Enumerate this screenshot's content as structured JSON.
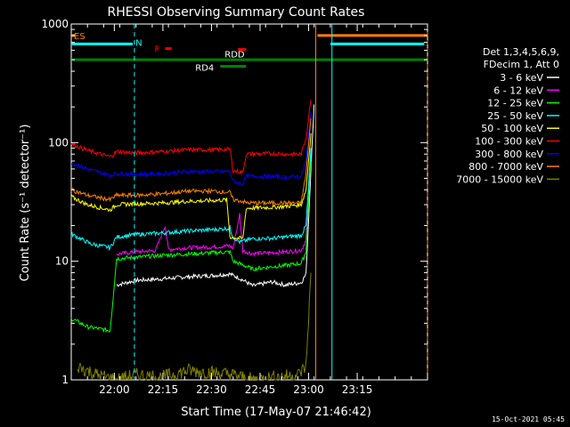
{
  "chart_data": {
    "type": "line",
    "title": "RHESSI Observing Summary Count Rates",
    "xlabel": "Start Time (17-May-07 21:46:42)",
    "ylabel": "Count Rate (s⁻¹ detector⁻¹)",
    "yscale": "log",
    "ylim": [
      1,
      1000
    ],
    "xlim_minutes": [
      0,
      110
    ],
    "y_ticks": [
      {
        "value": 1,
        "label": "1"
      },
      {
        "value": 10,
        "label": "10"
      },
      {
        "value": 100,
        "label": "100"
      },
      {
        "value": 1000,
        "label": "1000"
      }
    ],
    "x_ticks": [
      {
        "minute": 13.3,
        "label": "22:00"
      },
      {
        "minute": 28.3,
        "label": "22:15"
      },
      {
        "minute": 43.3,
        "label": "22:30"
      },
      {
        "minute": 58.3,
        "label": "22:45"
      },
      {
        "minute": 73.3,
        "label": "23:00"
      },
      {
        "minute": 88.3,
        "label": "23:15"
      }
    ],
    "legend_header": [
      "Det 1,3,4,5,6,9,",
      "FDecim 1, Att 0"
    ],
    "series": [
      {
        "name": "3 - 6 keV",
        "color": "#ffffff",
        "points": [
          [
            14,
            6.3
          ],
          [
            20,
            6.9
          ],
          [
            28,
            7.1
          ],
          [
            36,
            7.4
          ],
          [
            44,
            7.6
          ],
          [
            49,
            7.8
          ],
          [
            52,
            7.2
          ],
          [
            56,
            6.2
          ],
          [
            62,
            6.7
          ],
          [
            66,
            6.3
          ],
          [
            71,
            6.6
          ],
          [
            72.5,
            7.8
          ],
          [
            74,
            60
          ],
          [
            75,
            210
          ]
        ]
      },
      {
        "name": "6 - 12 keV",
        "color": "#ff00ff",
        "points": [
          [
            14,
            11.5
          ],
          [
            20,
            12
          ],
          [
            26,
            12.3
          ],
          [
            29,
            20
          ],
          [
            30,
            12.6
          ],
          [
            36,
            13
          ],
          [
            44,
            13.2
          ],
          [
            49,
            13.5
          ],
          [
            50,
            12.8
          ],
          [
            52,
            25
          ],
          [
            53,
            12.2
          ],
          [
            56,
            11.6
          ],
          [
            62,
            11.8
          ],
          [
            66,
            12
          ],
          [
            71,
            12.4
          ],
          [
            72.5,
            15
          ],
          [
            74,
            70
          ]
        ]
      },
      {
        "name": "12 - 25 keV",
        "color": "#00ff00",
        "points": [
          [
            0,
            3.3
          ],
          [
            5,
            2.8
          ],
          [
            12,
            2.6
          ],
          [
            14,
            10.5
          ],
          [
            20,
            10.8
          ],
          [
            28,
            11.2
          ],
          [
            36,
            11.5
          ],
          [
            44,
            11.8
          ],
          [
            49,
            12
          ],
          [
            50,
            10
          ],
          [
            53,
            9.3
          ],
          [
            56,
            8.6
          ],
          [
            62,
            9
          ],
          [
            66,
            9.2
          ],
          [
            71,
            9.6
          ],
          [
            72.5,
            12
          ],
          [
            74,
            80
          ]
        ]
      },
      {
        "name": "25 - 50 keV",
        "color": "#00ffff",
        "points": [
          [
            0,
            17
          ],
          [
            6,
            14
          ],
          [
            12,
            13
          ],
          [
            14,
            16
          ],
          [
            20,
            16.8
          ],
          [
            28,
            17.3
          ],
          [
            36,
            18
          ],
          [
            44,
            18.5
          ],
          [
            49,
            19
          ],
          [
            50,
            16
          ],
          [
            52,
            14.5
          ],
          [
            56,
            15.5
          ],
          [
            62,
            15.6
          ],
          [
            66,
            16
          ],
          [
            71,
            16.5
          ],
          [
            72.5,
            20
          ],
          [
            74,
            90
          ]
        ]
      },
      {
        "name": "50 - 100 keV",
        "color": "#ffff00",
        "points": [
          [
            0,
            35
          ],
          [
            5,
            30
          ],
          [
            12,
            27
          ],
          [
            14,
            30
          ],
          [
            20,
            30.5
          ],
          [
            28,
            31
          ],
          [
            36,
            32
          ],
          [
            44,
            32.5
          ],
          [
            48,
            33
          ],
          [
            49,
            16
          ],
          [
            53,
            15.5
          ],
          [
            54,
            28
          ],
          [
            62,
            28.5
          ],
          [
            66,
            29
          ],
          [
            71,
            30
          ],
          [
            72.5,
            40
          ],
          [
            74,
            120
          ]
        ]
      },
      {
        "name": "100 - 300 keV",
        "color": "#ff0000",
        "points": [
          [
            0,
            98
          ],
          [
            5,
            86
          ],
          [
            12,
            76
          ],
          [
            14,
            84
          ],
          [
            20,
            82
          ],
          [
            28,
            84
          ],
          [
            36,
            87
          ],
          [
            44,
            87
          ],
          [
            49,
            88
          ],
          [
            50,
            58
          ],
          [
            53,
            56
          ],
          [
            54,
            80
          ],
          [
            62,
            81
          ],
          [
            66,
            80
          ],
          [
            71,
            80
          ],
          [
            72.5,
            110
          ],
          [
            74,
            230
          ]
        ]
      },
      {
        "name": "300 - 800 keV",
        "color": "#0000ff",
        "points": [
          [
            0,
            68
          ],
          [
            5,
            60
          ],
          [
            12,
            53
          ],
          [
            14,
            55
          ],
          [
            20,
            54
          ],
          [
            28,
            55
          ],
          [
            36,
            57
          ],
          [
            44,
            57
          ],
          [
            49,
            57
          ],
          [
            50,
            47
          ],
          [
            53,
            45
          ],
          [
            54,
            52
          ],
          [
            62,
            52
          ],
          [
            66,
            51
          ],
          [
            71,
            52
          ],
          [
            72.5,
            70
          ],
          [
            74,
            180
          ]
        ]
      },
      {
        "name": "800 - 7000 keV",
        "color": "#ff8000",
        "points": [
          [
            0,
            40
          ],
          [
            5,
            36
          ],
          [
            12,
            33
          ],
          [
            14,
            36
          ],
          [
            20,
            36
          ],
          [
            28,
            37
          ],
          [
            36,
            39
          ],
          [
            44,
            39
          ],
          [
            49,
            38
          ],
          [
            50,
            33
          ],
          [
            53,
            32
          ],
          [
            54,
            31
          ],
          [
            62,
            31
          ],
          [
            66,
            31
          ],
          [
            71,
            31
          ],
          [
            72.5,
            55
          ],
          [
            74,
            160
          ]
        ]
      },
      {
        "name": "7000 - 15000 keV",
        "color": "#808000",
        "points": [
          [
            2,
            1.3
          ],
          [
            8,
            1.1
          ],
          [
            14,
            1
          ],
          [
            20,
            1.1
          ],
          [
            28,
            1.05
          ],
          [
            36,
            1.2
          ],
          [
            44,
            1.15
          ],
          [
            50,
            1.1
          ],
          [
            56,
            1
          ],
          [
            62,
            1.05
          ],
          [
            70,
            1.1
          ],
          [
            72.5,
            1.3
          ],
          [
            74,
            8
          ]
        ]
      }
    ],
    "flag_bars": [
      {
        "label": "ES",
        "label_color": "#ff8000",
        "color": "#ff8000",
        "segments": [
          [
            0,
            1.2
          ],
          [
            76,
            110
          ]
        ],
        "level": 800
      },
      {
        "label": "N",
        "label_color": "#00ffff",
        "color": "#00ffff",
        "segments": [
          [
            0,
            19
          ],
          [
            80,
            109
          ]
        ],
        "level": 680
      },
      {
        "label": "F",
        "label_color": "#ff0000",
        "color": "#ff0000",
        "segments": [
          [
            29,
            31
          ]
        ],
        "level": 620
      },
      {
        "label": "RDD",
        "label_color": "#ffffff",
        "color": "#ff0000",
        "segments": [
          [
            51.5,
            54
          ]
        ],
        "level": 610
      },
      {
        "label": "",
        "label_color": "#008000",
        "color": "#008000",
        "segments": [
          [
            0,
            110
          ]
        ],
        "level": 500
      },
      {
        "label": "RD4",
        "label_color": "#ffffff",
        "color": "#008000",
        "segments": [
          [
            46,
            54
          ]
        ],
        "level": 440
      }
    ],
    "vlines": [
      {
        "minute": 19.5,
        "color": "#00ffff",
        "dashed": true
      },
      {
        "minute": 80.5,
        "color": "#00ffff",
        "dashed": false
      },
      {
        "minute": 75.5,
        "color": "#ff8000",
        "dashed": false
      },
      {
        "minute": 110,
        "color": "#ff8000",
        "dashed": true
      }
    ],
    "grid": false,
    "legend_position": "right"
  },
  "timestamp": "15-Oct-2021 05:45"
}
